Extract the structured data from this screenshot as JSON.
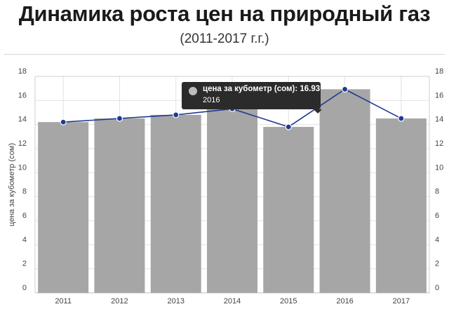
{
  "chart_data": {
    "type": "bar",
    "title": "Динамика роста цен на природный газ",
    "subtitle": "(2011-2017 г.г.)",
    "ylabel": "цена за кубометр (сом)",
    "categories": [
      "2011",
      "2012",
      "2013",
      "2014",
      "2015",
      "2016",
      "2017"
    ],
    "series": [
      {
        "name": "цена за кубометр (сом)",
        "type": "bar",
        "values": [
          14.2,
          14.5,
          14.8,
          15.3,
          13.8,
          16.93,
          14.5
        ],
        "color": "#a6a6a6"
      },
      {
        "type": "line",
        "values": [
          14.2,
          14.5,
          14.8,
          15.3,
          13.8,
          16.93,
          14.5
        ],
        "color": "#1f3a93"
      }
    ],
    "ylim": [
      0,
      18
    ],
    "yticks": [
      "0",
      "2",
      "4",
      "6",
      "8",
      "10",
      "12",
      "14",
      "16",
      "18"
    ],
    "grid": true,
    "tooltip": {
      "series_label": "цена за кубометр (сом): 16.93",
      "category": "2016"
    }
  }
}
